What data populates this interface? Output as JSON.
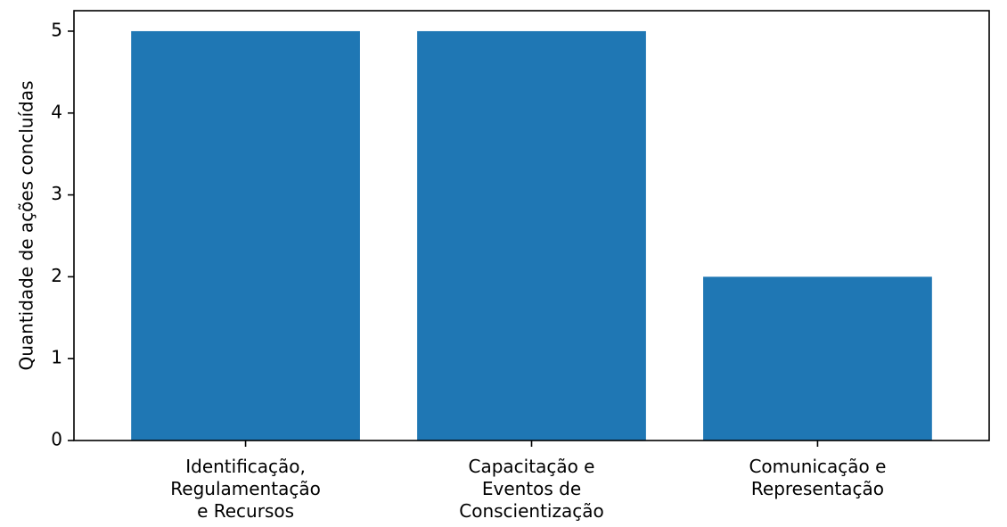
{
  "chart_data": {
    "type": "bar",
    "title": "",
    "xlabel": "",
    "ylabel": "Quantidade de ações concluídas",
    "categories": [
      [
        "Identificação,",
        "Regulamentação",
        "e Recursos"
      ],
      [
        "Capacitação e",
        "Eventos de",
        "Conscientização"
      ],
      [
        "Comunicação e",
        "Representação"
      ]
    ],
    "values": [
      5,
      5,
      2
    ],
    "ylim": [
      0,
      5.25
    ],
    "yticks": [
      0,
      1,
      2,
      3,
      4,
      5
    ],
    "grid": false,
    "bar_color": "#1f77b4"
  }
}
